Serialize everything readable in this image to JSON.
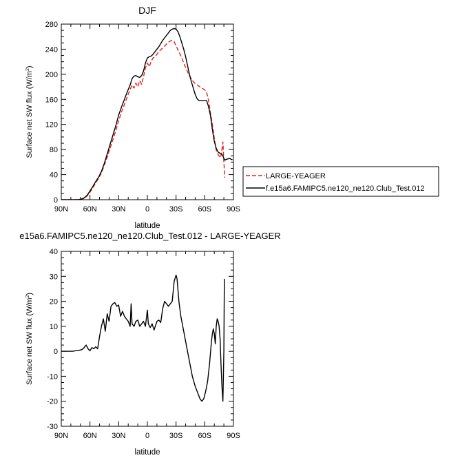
{
  "chart_data": [
    {
      "type": "line",
      "title": "DJF",
      "xlabel": "latitude",
      "ylabel": "Surface net SW flux (W/m²)",
      "ylim": [
        0,
        280
      ],
      "yticks": [
        0,
        40,
        80,
        120,
        160,
        200,
        240,
        280
      ],
      "xlim": [
        90,
        -90
      ],
      "xticks": [
        90,
        60,
        30,
        0,
        -30,
        -60,
        -90
      ],
      "xticklabels": [
        "90N",
        "60N",
        "30N",
        "0",
        "30S",
        "60S",
        "90S"
      ],
      "legend_position": "outside-right",
      "series": [
        {
          "name": "LARGE-YEAGER",
          "color": "#e0201b",
          "dashed": true,
          "points": [
            [
              90,
              0
            ],
            [
              84,
              0
            ],
            [
              78,
              0
            ],
            [
              72,
              0.2
            ],
            [
              69,
              1
            ],
            [
              66,
              2
            ],
            [
              63,
              6
            ],
            [
              60,
              12
            ],
            [
              57,
              19
            ],
            [
              54,
              27
            ],
            [
              51,
              34
            ],
            [
              48,
              43
            ],
            [
              45,
              55
            ],
            [
              42,
              68
            ],
            [
              39,
              82
            ],
            [
              36,
              96
            ],
            [
              33,
              110
            ],
            [
              30,
              126
            ],
            [
              27,
              140
            ],
            [
              24,
              152
            ],
            [
              21,
              164
            ],
            [
              18,
              176
            ],
            [
              16,
              183
            ],
            [
              14,
              178
            ],
            [
              12,
              186
            ],
            [
              10,
              180
            ],
            [
              8,
              190
            ],
            [
              6,
              184
            ],
            [
              4,
              196
            ],
            [
              2,
              210
            ],
            [
              0,
              218
            ],
            [
              -2,
              212
            ],
            [
              -4,
              221
            ],
            [
              -6,
              226
            ],
            [
              -8,
              228
            ],
            [
              -10,
              232
            ],
            [
              -12,
              236
            ],
            [
              -14,
              239
            ],
            [
              -16,
              242
            ],
            [
              -18,
              245
            ],
            [
              -20,
              248
            ],
            [
              -22,
              251
            ],
            [
              -24,
              253
            ],
            [
              -26,
              254
            ],
            [
              -28,
              252
            ],
            [
              -30,
              245
            ],
            [
              -33,
              236
            ],
            [
              -36,
              226
            ],
            [
              -39,
              214
            ],
            [
              -42,
              204
            ],
            [
              -45,
              195
            ],
            [
              -48,
              188
            ],
            [
              -51,
              184
            ],
            [
              -54,
              181
            ],
            [
              -57,
              178
            ],
            [
              -60,
              175
            ],
            [
              -62,
              171
            ],
            [
              -64,
              158
            ],
            [
              -66,
              138
            ],
            [
              -68,
              120
            ],
            [
              -70,
              98
            ],
            [
              -72,
              79
            ],
            [
              -74,
              72
            ],
            [
              -76,
              67
            ],
            [
              -77,
              70
            ],
            [
              -78,
              80
            ],
            [
              -79,
              92
            ],
            [
              -80,
              60
            ],
            [
              -81,
              35
            ]
          ]
        },
        {
          "name": "f.e15a6.FAMIPC5.ne120_ne120.Club_Test.012",
          "color": "#000000",
          "dashed": false,
          "points": [
            [
              90,
              0
            ],
            [
              84,
              0
            ],
            [
              78,
              0
            ],
            [
              72,
              0.2
            ],
            [
              69,
              1
            ],
            [
              66,
              3
            ],
            [
              63,
              7
            ],
            [
              60,
              14
            ],
            [
              57,
              21
            ],
            [
              54,
              29
            ],
            [
              51,
              36
            ],
            [
              48,
              45
            ],
            [
              45,
              58
            ],
            [
              42,
              73
            ],
            [
              39,
              88
            ],
            [
              36,
              103
            ],
            [
              33,
              118
            ],
            [
              30,
              135
            ],
            [
              27,
              148
            ],
            [
              24,
              160
            ],
            [
              21,
              172
            ],
            [
              18,
              183
            ],
            [
              16,
              193
            ],
            [
              14,
              197
            ],
            [
              12,
              198
            ],
            [
              10,
              196
            ],
            [
              8,
              195
            ],
            [
              6,
              198
            ],
            [
              4,
              205
            ],
            [
              2,
              218
            ],
            [
              0,
              226
            ],
            [
              -2,
              228
            ],
            [
              -4,
              229
            ],
            [
              -6,
              232
            ],
            [
              -8,
              236
            ],
            [
              -10,
              240
            ],
            [
              -12,
              244
            ],
            [
              -14,
              249
            ],
            [
              -16,
              254
            ],
            [
              -18,
              258
            ],
            [
              -20,
              262
            ],
            [
              -22,
              266
            ],
            [
              -24,
              270
            ],
            [
              -26,
              272
            ],
            [
              -28,
              273
            ],
            [
              -30,
              272
            ],
            [
              -32,
              268
            ],
            [
              -34,
              260
            ],
            [
              -36,
              250
            ],
            [
              -38,
              240
            ],
            [
              -40,
              228
            ],
            [
              -42,
              214
            ],
            [
              -44,
              200
            ],
            [
              -46,
              188
            ],
            [
              -48,
              178
            ],
            [
              -50,
              168
            ],
            [
              -52,
              161
            ],
            [
              -54,
              158
            ],
            [
              -56,
              158
            ],
            [
              -58,
              158
            ],
            [
              -60,
              158
            ],
            [
              -62,
              158
            ],
            [
              -64,
              148
            ],
            [
              -66,
              134
            ],
            [
              -68,
              112
            ],
            [
              -70,
              93
            ],
            [
              -72,
              82
            ],
            [
              -74,
              76
            ],
            [
              -76,
              74
            ],
            [
              -78,
              72
            ],
            [
              -79,
              70
            ],
            [
              -80,
              66
            ],
            [
              -81,
              63
            ],
            [
              -82,
              64
            ],
            [
              -84,
              65
            ],
            [
              -86,
              66
            ],
            [
              -88,
              64
            ],
            [
              -89,
              64
            ]
          ]
        }
      ]
    },
    {
      "type": "line",
      "title": "e15a6.FAMIPC5.ne120_ne120.Club_Test.012 - LARGE-YEAGER",
      "xlabel": "latitude",
      "ylabel": "Surface net SW flux (W/m²)",
      "ylim": [
        -30,
        40
      ],
      "yticks": [
        -30,
        -20,
        -10,
        0,
        10,
        20,
        30,
        40
      ],
      "xlim": [
        90,
        -90
      ],
      "xticks": [
        90,
        60,
        30,
        0,
        -30,
        -60,
        -90
      ],
      "xticklabels": [
        "90N",
        "60N",
        "30N",
        "0",
        "30S",
        "60S",
        "90S"
      ],
      "series": [
        {
          "color": "#000000",
          "dashed": false,
          "points": [
            [
              90,
              0
            ],
            [
              84,
              0
            ],
            [
              78,
              0
            ],
            [
              74,
              0.3
            ],
            [
              70,
              0.5
            ],
            [
              68,
              0.8
            ],
            [
              66,
              1.5
            ],
            [
              64,
              2.5
            ],
            [
              62,
              1.0
            ],
            [
              60,
              0.2
            ],
            [
              58,
              1.5
            ],
            [
              56,
              1.0
            ],
            [
              54,
              1.8
            ],
            [
              52,
              1.0
            ],
            [
              50,
              6
            ],
            [
              48,
              10
            ],
            [
              46,
              13
            ],
            [
              44,
              8
            ],
            [
              42,
              15
            ],
            [
              40,
              12
            ],
            [
              38,
              18
            ],
            [
              36,
              19
            ],
            [
              34,
              19.5
            ],
            [
              32,
              18
            ],
            [
              30,
              18.5
            ],
            [
              28,
              14
            ],
            [
              26,
              16
            ],
            [
              24,
              14
            ],
            [
              22,
              13
            ],
            [
              20,
              12
            ],
            [
              18,
              10
            ],
            [
              17,
              19
            ],
            [
              16,
              11
            ],
            [
              14,
              10
            ],
            [
              12,
              12
            ],
            [
              10,
              12.5
            ],
            [
              8,
              10
            ],
            [
              6,
              11
            ],
            [
              4,
              12
            ],
            [
              2,
              10
            ],
            [
              0,
              16.5
            ],
            [
              -1,
              11
            ],
            [
              -3,
              9.5
            ],
            [
              -5,
              11
            ],
            [
              -7,
              8.5
            ],
            [
              -10,
              12
            ],
            [
              -12,
              12.5
            ],
            [
              -14,
              11.5
            ],
            [
              -16,
              17
            ],
            [
              -18,
              20
            ],
            [
              -20,
              19
            ],
            [
              -22,
              18
            ],
            [
              -24,
              19
            ],
            [
              -26,
              20
            ],
            [
              -28,
              28
            ],
            [
              -30,
              30.5
            ],
            [
              -31,
              29
            ],
            [
              -33,
              20
            ],
            [
              -35,
              14
            ],
            [
              -38,
              8
            ],
            [
              -41,
              2
            ],
            [
              -44,
              -4
            ],
            [
              -47,
              -10
            ],
            [
              -50,
              -14
            ],
            [
              -53,
              -17
            ],
            [
              -55,
              -19
            ],
            [
              -57,
              -20
            ],
            [
              -59,
              -19
            ],
            [
              -61,
              -16
            ],
            [
              -63,
              -12
            ],
            [
              -65,
              -5
            ],
            [
              -67,
              4
            ],
            [
              -68,
              7
            ],
            [
              -69,
              9
            ],
            [
              -70,
              7
            ],
            [
              -71,
              3
            ],
            [
              -72,
              10
            ],
            [
              -73,
              13
            ],
            [
              -74,
              12
            ],
            [
              -75,
              10
            ],
            [
              -76,
              5
            ],
            [
              -77,
              -5
            ],
            [
              -78,
              -14
            ],
            [
              -79,
              -20
            ],
            [
              -80,
              0
            ],
            [
              -80.5,
              29
            ]
          ]
        }
      ]
    }
  ]
}
